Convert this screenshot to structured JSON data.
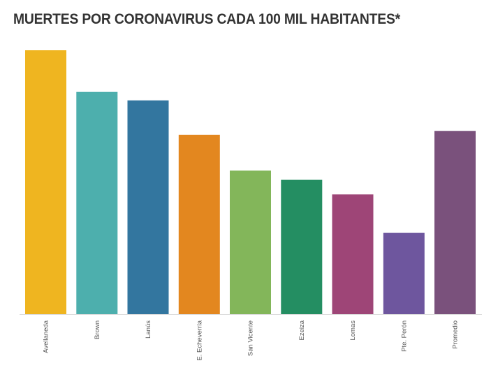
{
  "title": "MUERTES POR CORONAVIRUS CADA 100 MIL HABITANTES*",
  "chart_data": {
    "type": "bar",
    "title": "MUERTES POR CORONAVIRUS CADA 100 MIL HABITANTES*",
    "xlabel": "",
    "ylabel": "",
    "ylim": [
      0,
      100
    ],
    "grid": false,
    "note": "No axis scale is shown; values are relative bar heights estimated on a 0-100 scale.",
    "categories": [
      "Avellaneda",
      "Brown",
      "Lanús",
      "E. Echeverría",
      "San Vicente",
      "Ezeiza",
      "Lomas",
      "Pte. Perón",
      "Promedio"
    ],
    "values": [
      100,
      84.2,
      81.0,
      68.0,
      54.4,
      50.9,
      45.4,
      30.8,
      69.4
    ],
    "colors": [
      "#EFB520",
      "#4DAFAD",
      "#33769F",
      "#E3871F",
      "#83B65A",
      "#248E62",
      "#9E4577",
      "#6E569E",
      "#7A517C"
    ]
  }
}
